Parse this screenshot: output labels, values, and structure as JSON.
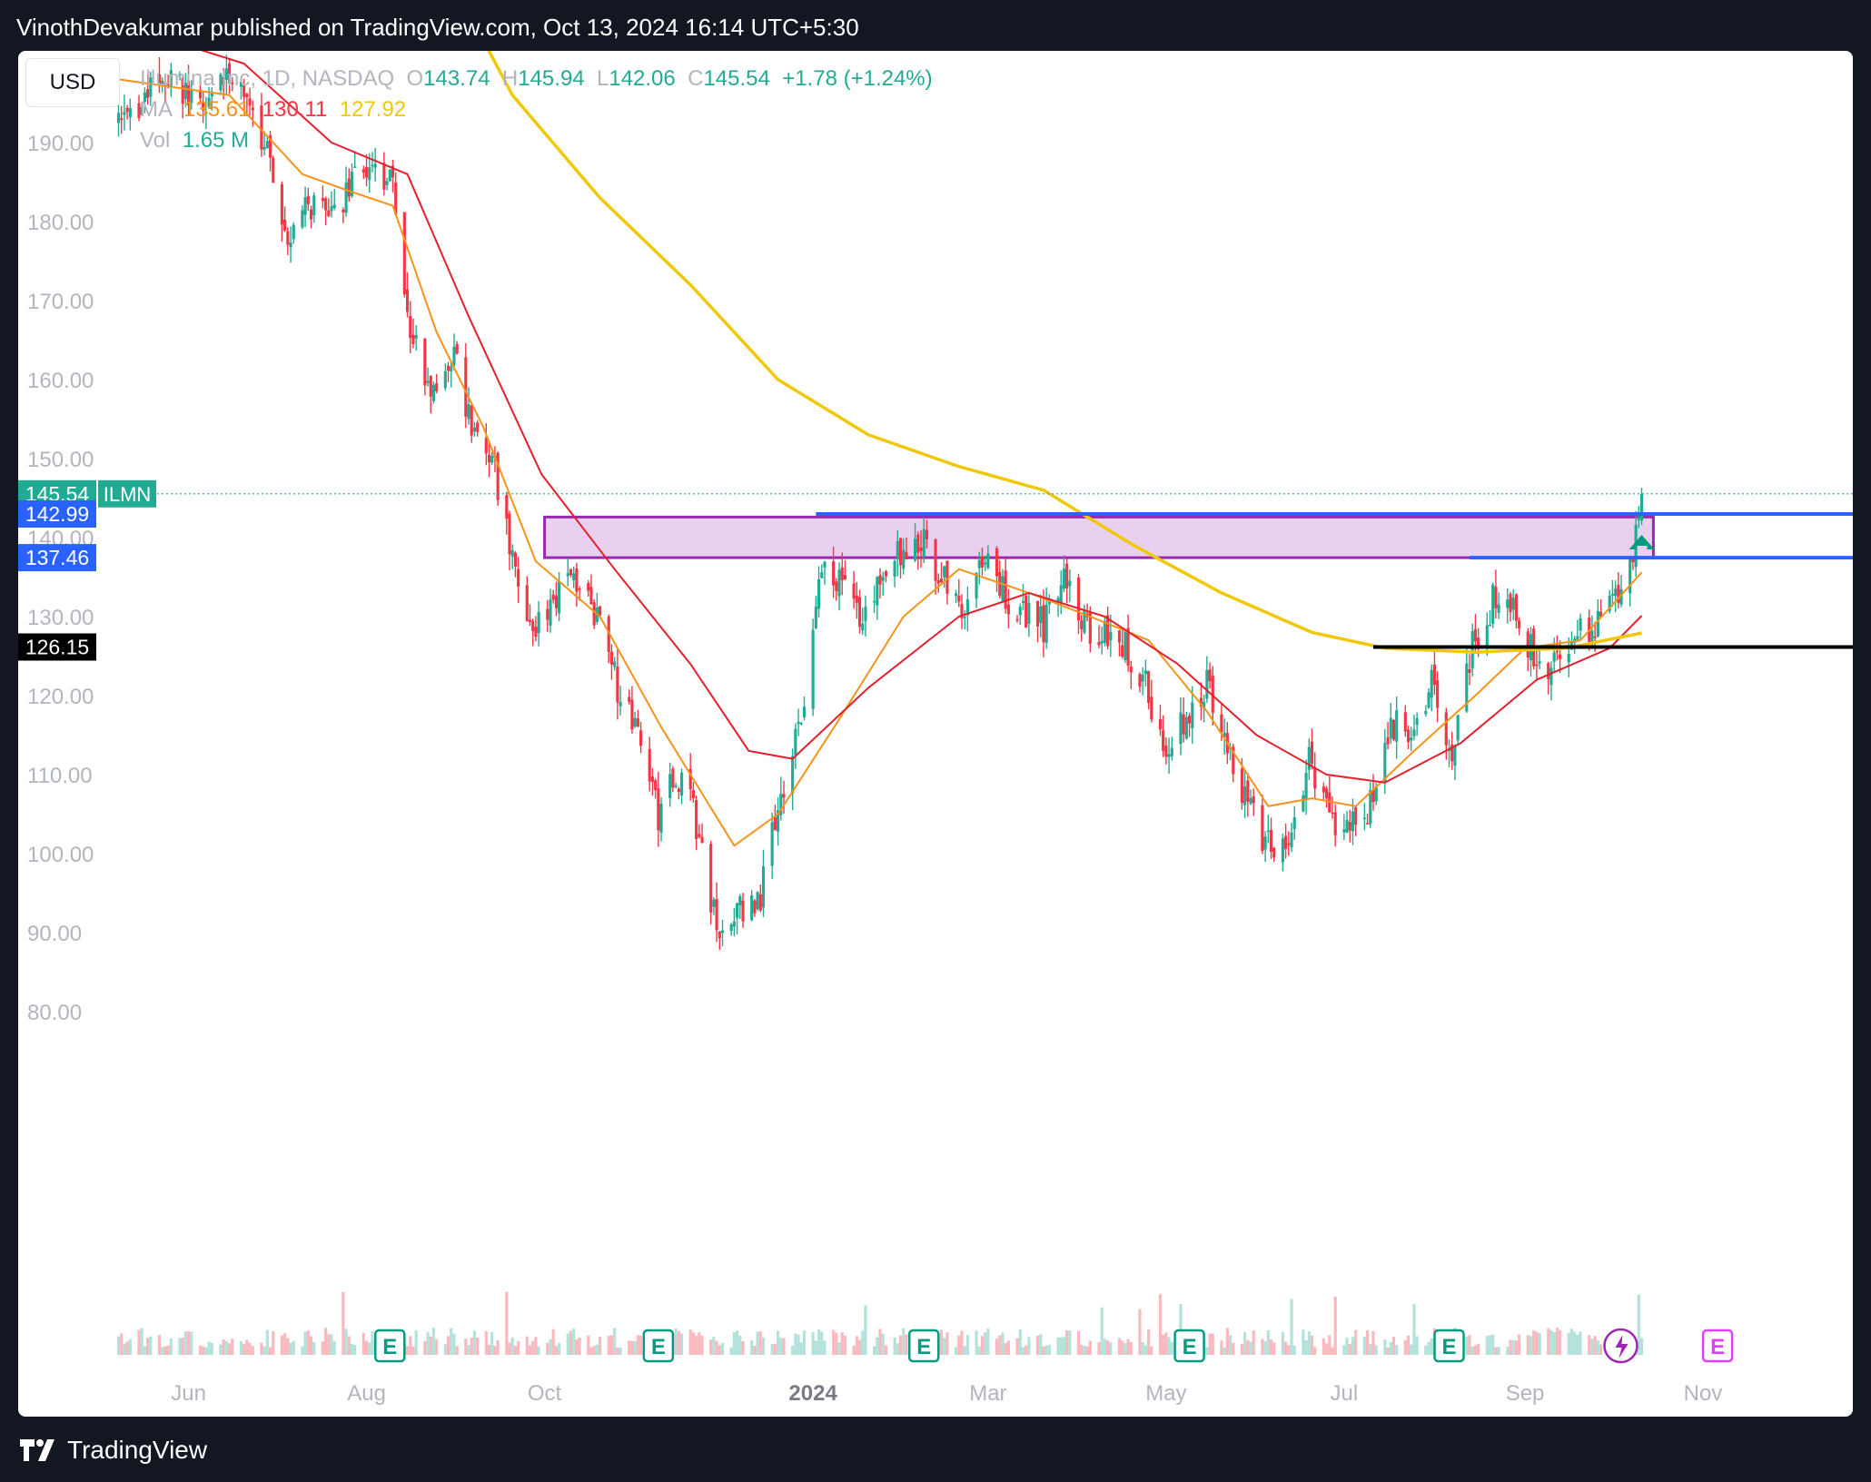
{
  "header": {
    "published_by": "VinothDevakumar published on TradingView.com, Oct 13, 2024 16:14 UTC+5:30"
  },
  "footer": {
    "brand": "TradingView"
  },
  "toolbar": {
    "currency": "USD"
  },
  "legend": {
    "symbol_name": "Illumina Inc",
    "interval": "1D",
    "exchange": "NASDAQ",
    "open_label": "O",
    "open": "143.74",
    "high_label": "H",
    "high": "145.94",
    "low_label": "L",
    "low": "142.06",
    "close_label": "C",
    "close": "145.54",
    "change": "+1.78 (+1.24%)",
    "ma_label": "MA",
    "ma1": "135.61",
    "ma2": "130.11",
    "ma3": "127.92",
    "vol_label": "Vol",
    "vol": "1.65 M"
  },
  "colors": {
    "up": "#22ab94",
    "down": "#f23645",
    "ma_fast": "#f7931a",
    "ma_mid": "#e5202e",
    "ma_slow": "#f0c808",
    "zone_fill": "#e9d0ef",
    "zone_border": "#9c27b0",
    "line_blue": "#2962ff",
    "line_black": "#000000",
    "earnings": "#089981",
    "earnings_next": "#e040fb"
  },
  "chart_data": {
    "type": "candlestick",
    "ylim": [
      77,
      205
    ],
    "y_ticks": [
      "80.00",
      "90.00",
      "100.00",
      "110.00",
      "120.00",
      "130.00",
      "140.00",
      "150.00",
      "160.00",
      "170.00",
      "180.00",
      "190.00"
    ],
    "x_ticks": [
      "Jun",
      "Aug",
      "Oct",
      "2024",
      "Mar",
      "May",
      "Jul",
      "Sep",
      "Nov"
    ],
    "price_labels": [
      {
        "value": 145.54,
        "text": "145.54",
        "tag": "ILMN",
        "color": "#22ab94"
      },
      {
        "value": 142.99,
        "text": "142.99",
        "color": "#2962ff"
      },
      {
        "value": 137.46,
        "text": "137.46",
        "color": "#2962ff"
      },
      {
        "value": 126.15,
        "text": "126.15",
        "color": "#000000"
      }
    ],
    "zone": {
      "from": "2023-10-01",
      "to": "2024-10-15",
      "low": 137.46,
      "high": 142.6
    },
    "levels": [
      {
        "value": 142.99,
        "from": "2024-01-02",
        "color": "#2962ff"
      },
      {
        "value": 137.46,
        "from": "2024-08-13",
        "color": "#2962ff"
      },
      {
        "value": 126.15,
        "from": "2024-07-11",
        "color": "#000000"
      }
    ],
    "earnings_labels": [
      "E",
      "E",
      "E",
      "E",
      "E",
      "E"
    ],
    "earnings_dates": [
      "2023-08-09",
      "2023-11-09",
      "2024-02-08",
      "2024-05-09",
      "2024-08-06",
      "2024-11-06"
    ],
    "keypoints": [
      [
        "2023-05-08",
        192
      ],
      [
        "2023-05-18",
        196
      ],
      [
        "2023-05-26",
        198
      ],
      [
        "2023-06-06",
        194
      ],
      [
        "2023-06-16",
        199
      ],
      [
        "2023-06-28",
        188
      ],
      [
        "2023-07-05",
        179
      ],
      [
        "2023-07-14",
        182
      ],
      [
        "2023-07-21",
        180
      ],
      [
        "2023-07-28",
        186
      ],
      [
        "2023-08-03",
        187
      ],
      [
        "2023-08-10",
        184
      ],
      [
        "2023-08-16",
        166
      ],
      [
        "2023-08-24",
        158
      ],
      [
        "2023-08-31",
        163
      ],
      [
        "2023-09-07",
        152
      ],
      [
        "2023-09-14",
        148
      ],
      [
        "2023-09-21",
        136
      ],
      [
        "2023-09-28",
        128
      ],
      [
        "2023-10-05",
        133
      ],
      [
        "2023-10-12",
        134
      ],
      [
        "2023-10-19",
        130
      ],
      [
        "2023-10-26",
        121
      ],
      [
        "2023-11-02",
        114
      ],
      [
        "2023-11-09",
        105
      ],
      [
        "2023-11-16",
        110
      ],
      [
        "2023-11-22",
        104
      ],
      [
        "2023-11-29",
        90
      ],
      [
        "2023-12-06",
        93
      ],
      [
        "2023-12-13",
        93
      ],
      [
        "2023-12-20",
        107
      ],
      [
        "2023-12-28",
        116
      ],
      [
        "2024-01-04",
        136
      ],
      [
        "2024-01-11",
        135
      ],
      [
        "2024-01-18",
        130
      ],
      [
        "2024-01-25",
        134
      ],
      [
        "2024-02-01",
        139
      ],
      [
        "2024-02-07",
        140
      ],
      [
        "2024-02-14",
        135
      ],
      [
        "2024-02-21",
        130
      ],
      [
        "2024-02-28",
        138
      ],
      [
        "2024-03-06",
        133
      ],
      [
        "2024-03-13",
        131
      ],
      [
        "2024-03-20",
        129
      ],
      [
        "2024-03-27",
        136
      ],
      [
        "2024-04-03",
        129
      ],
      [
        "2024-04-10",
        128
      ],
      [
        "2024-04-17",
        126
      ],
      [
        "2024-04-24",
        121
      ],
      [
        "2024-05-01",
        112
      ],
      [
        "2024-05-08",
        118
      ],
      [
        "2024-05-15",
        121
      ],
      [
        "2024-05-22",
        114
      ],
      [
        "2024-05-29",
        106
      ],
      [
        "2024-06-05",
        101
      ],
      [
        "2024-06-12",
        100
      ],
      [
        "2024-06-19",
        112
      ],
      [
        "2024-06-26",
        104
      ],
      [
        "2024-07-03",
        104
      ],
      [
        "2024-07-10",
        106
      ],
      [
        "2024-07-17",
        117
      ],
      [
        "2024-07-24",
        114
      ],
      [
        "2024-07-31",
        121
      ],
      [
        "2024-08-07",
        113
      ],
      [
        "2024-08-14",
        126
      ],
      [
        "2024-08-21",
        132
      ],
      [
        "2024-08-28",
        131
      ],
      [
        "2024-09-04",
        125
      ],
      [
        "2024-09-11",
        124
      ],
      [
        "2024-09-18",
        128
      ],
      [
        "2024-09-25",
        128
      ],
      [
        "2024-10-02",
        133
      ],
      [
        "2024-10-08",
        138
      ],
      [
        "2024-10-11",
        145.54
      ]
    ],
    "ma_fast_points": [
      [
        "2023-05-08",
        198
      ],
      [
        "2023-06-15",
        196
      ],
      [
        "2023-07-10",
        186
      ],
      [
        "2023-07-25",
        184
      ],
      [
        "2023-08-10",
        182
      ],
      [
        "2023-08-25",
        166
      ],
      [
        "2023-09-10",
        154
      ],
      [
        "2023-09-28",
        137
      ],
      [
        "2023-10-20",
        130
      ],
      [
        "2023-11-10",
        116
      ],
      [
        "2023-12-05",
        101
      ],
      [
        "2023-12-20",
        105
      ],
      [
        "2024-01-10",
        117
      ],
      [
        "2024-02-01",
        130
      ],
      [
        "2024-02-20",
        136
      ],
      [
        "2024-03-15",
        133
      ],
      [
        "2024-04-05",
        130
      ],
      [
        "2024-04-25",
        127
      ],
      [
        "2024-05-15",
        118
      ],
      [
        "2024-06-05",
        106
      ],
      [
        "2024-06-20",
        107
      ],
      [
        "2024-07-05",
        106
      ],
      [
        "2024-07-25",
        113
      ],
      [
        "2024-08-15",
        120
      ],
      [
        "2024-09-01",
        126
      ],
      [
        "2024-09-20",
        127
      ],
      [
        "2024-10-11",
        135.61
      ]
    ],
    "ma_mid_points": [
      [
        "2023-05-08",
        205
      ],
      [
        "2023-06-20",
        200
      ],
      [
        "2023-07-20",
        190
      ],
      [
        "2023-08-15",
        186
      ],
      [
        "2023-09-05",
        168
      ],
      [
        "2023-09-30",
        148
      ],
      [
        "2023-10-25",
        136
      ],
      [
        "2023-11-20",
        124
      ],
      [
        "2023-12-10",
        113
      ],
      [
        "2023-12-25",
        112
      ],
      [
        "2024-01-20",
        121
      ],
      [
        "2024-02-20",
        130
      ],
      [
        "2024-03-15",
        133
      ],
      [
        "2024-04-10",
        130
      ],
      [
        "2024-05-05",
        124
      ],
      [
        "2024-06-01",
        115
      ],
      [
        "2024-06-25",
        110
      ],
      [
        "2024-07-15",
        109
      ],
      [
        "2024-08-10",
        114
      ],
      [
        "2024-09-05",
        122
      ],
      [
        "2024-09-30",
        126
      ],
      [
        "2024-10-11",
        130.11
      ]
    ],
    "ma_slow_points": [
      [
        "2023-08-28",
        212
      ],
      [
        "2023-09-20",
        196
      ],
      [
        "2023-10-20",
        183
      ],
      [
        "2023-11-20",
        172
      ],
      [
        "2023-12-20",
        160
      ],
      [
        "2024-01-20",
        153
      ],
      [
        "2024-02-20",
        149
      ],
      [
        "2024-03-20",
        146
      ],
      [
        "2024-04-20",
        139
      ],
      [
        "2024-05-20",
        133
      ],
      [
        "2024-06-20",
        128
      ],
      [
        "2024-07-15",
        126
      ],
      [
        "2024-08-15",
        125.5
      ],
      [
        "2024-09-15",
        126
      ],
      [
        "2024-10-11",
        127.92
      ]
    ]
  }
}
